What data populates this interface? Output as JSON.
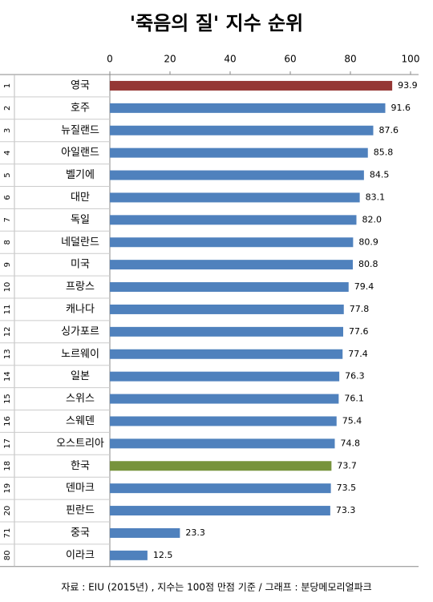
{
  "chart_data": {
    "type": "bar",
    "title": "'죽음의 질' 지수 순위",
    "ranks": [
      1,
      2,
      3,
      4,
      5,
      6,
      7,
      8,
      9,
      10,
      11,
      12,
      13,
      14,
      15,
      16,
      17,
      18,
      19,
      20,
      71,
      80
    ],
    "categories": [
      "영국",
      "호주",
      "뉴질랜드",
      "아일랜드",
      "벨기에",
      "대만",
      "독일",
      "네덜란드",
      "미국",
      "프랑스",
      "캐나다",
      "싱가포르",
      "노르웨이",
      "일본",
      "스위스",
      "스웨덴",
      "오스트리아",
      "한국",
      "덴마크",
      "핀란드",
      "중국",
      "이라크"
    ],
    "values": [
      93.9,
      91.6,
      87.6,
      85.8,
      84.5,
      83.1,
      82.0,
      80.9,
      80.8,
      79.4,
      77.8,
      77.6,
      77.4,
      76.3,
      76.1,
      75.4,
      74.8,
      73.7,
      73.5,
      73.3,
      23.3,
      12.5
    ],
    "value_labels": [
      "93.9",
      "91.6",
      "87.6",
      "85.8",
      "84.5",
      "83.1",
      "82.0",
      "80.9",
      "80.8",
      "79.4",
      "77.8",
      "77.6",
      "77.4",
      "76.3",
      "76.1",
      "75.4",
      "74.8",
      "73.7",
      "73.5",
      "73.3",
      "23.3",
      "12.5"
    ],
    "colors": [
      "#953735",
      "#4f81bd",
      "#4f81bd",
      "#4f81bd",
      "#4f81bd",
      "#4f81bd",
      "#4f81bd",
      "#4f81bd",
      "#4f81bd",
      "#4f81bd",
      "#4f81bd",
      "#4f81bd",
      "#4f81bd",
      "#4f81bd",
      "#4f81bd",
      "#4f81bd",
      "#4f81bd",
      "#77933c",
      "#4f81bd",
      "#4f81bd",
      "#4f81bd",
      "#4f81bd"
    ],
    "xlim": [
      0,
      100
    ],
    "xticks": [
      0,
      20,
      40,
      60,
      80,
      100
    ],
    "source": "자료 : EIU (2015년) , 지수는 100점 만점 기준 / 그래프 : 분당메모리얼파크"
  }
}
